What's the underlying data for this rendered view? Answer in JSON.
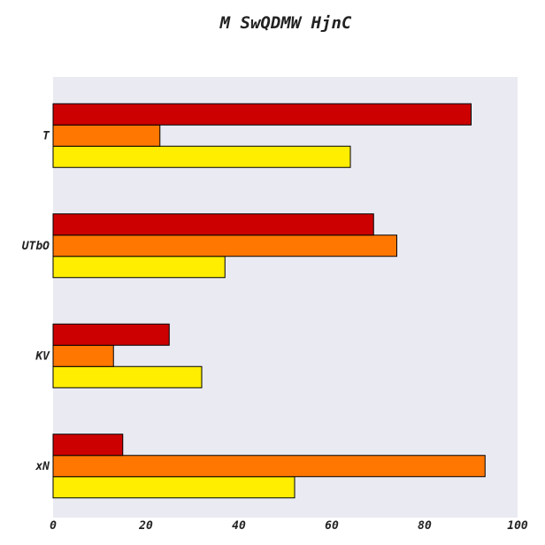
{
  "chart_data": {
    "type": "bar",
    "orientation": "horizontal",
    "title": "M SwQDMW HjnC",
    "xlabel": "",
    "ylabel": "",
    "categories": [
      "xN",
      "KV",
      "UTbO",
      "T"
    ],
    "xlim": [
      0,
      100
    ],
    "xticks": [
      0,
      20,
      40,
      60,
      80,
      100
    ],
    "grid": false,
    "legend": "none",
    "series": [
      {
        "color": "#ffee00",
        "values": [
          52,
          32,
          37,
          64
        ]
      },
      {
        "color": "#ff7700",
        "values": [
          93,
          13,
          74,
          23
        ]
      },
      {
        "color": "#cc0000",
        "values": [
          15,
          25,
          69,
          90
        ]
      }
    ],
    "plot_background": "#eaeaf2"
  }
}
